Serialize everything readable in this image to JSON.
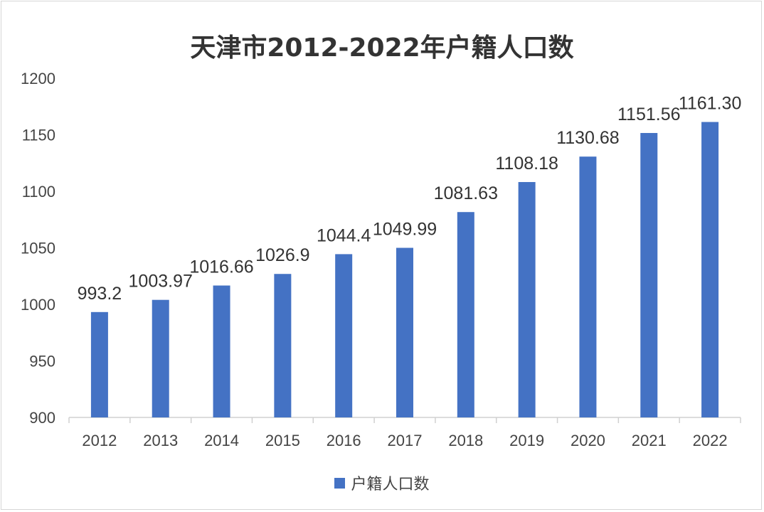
{
  "chart_data": {
    "type": "bar",
    "title": "天津市2012-2022年户籍人口数",
    "categories": [
      "2012",
      "2013",
      "2014",
      "2015",
      "2016",
      "2017",
      "2018",
      "2019",
      "2020",
      "2021",
      "2022"
    ],
    "series": [
      {
        "name": "户籍人口数",
        "values": [
          993.2,
          1003.97,
          1016.66,
          1026.9,
          1044.4,
          1049.99,
          1081.63,
          1108.18,
          1130.68,
          1151.56,
          1161.3
        ],
        "labels": [
          "993.2",
          "1003.97",
          "1016.66",
          "1026.9",
          "1044.4",
          "1049.99",
          "1081.63",
          "1108.18",
          "1130.68",
          "1151.56",
          "1161.30"
        ],
        "color": "#4472c4"
      }
    ],
    "ylim": [
      900,
      1200
    ],
    "yticks": [
      "900",
      "950",
      "1000",
      "1050",
      "1100",
      "1150",
      "1200"
    ],
    "xlabel": "",
    "ylabel": "",
    "grid": false,
    "legend_position": "bottom"
  }
}
